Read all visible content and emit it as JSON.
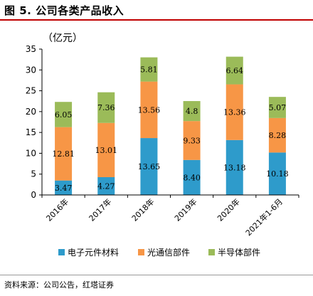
{
  "figure": {
    "title": "图 5. 公司各类产品收入",
    "source": "资料来源：公司公告，红塔证券"
  },
  "colors": {
    "electronic": "#2e9bcb",
    "optical": "#f79646",
    "semiconductor": "#9bbb59",
    "title_rule": "#c00000"
  },
  "chart_data": {
    "type": "bar",
    "stacked": true,
    "unit_label": "（亿元）",
    "categories": [
      "2016年",
      "2017年",
      "2018年",
      "2019年",
      "2020年",
      "2021年1-6月"
    ],
    "series": [
      {
        "name": "电子元件材料",
        "color": "#2e9bcb",
        "values": [
          3.47,
          4.27,
          13.65,
          8.4,
          13.18,
          10.18
        ],
        "labels": [
          "3.47",
          "4.27",
          "13.65",
          "8.40",
          "13.18",
          "10.18"
        ]
      },
      {
        "name": "光通信部件",
        "color": "#f79646",
        "values": [
          12.81,
          13.01,
          13.56,
          9.33,
          13.36,
          8.28
        ],
        "labels": [
          "12.81",
          "13.01",
          "13.56",
          "9.33",
          "13.36",
          "8.28"
        ]
      },
      {
        "name": "半导体部件",
        "color": "#9bbb59",
        "values": [
          6.05,
          7.36,
          5.81,
          4.8,
          6.64,
          5.07
        ],
        "labels": [
          "6.05",
          "7.36",
          "5.81",
          "4.8",
          "6.64",
          "5.07"
        ]
      }
    ],
    "ylim": [
      0,
      35
    ],
    "yticks": [
      0,
      5,
      10,
      15,
      20,
      25,
      30,
      35
    ],
    "grid": false,
    "legend_position": "bottom"
  }
}
